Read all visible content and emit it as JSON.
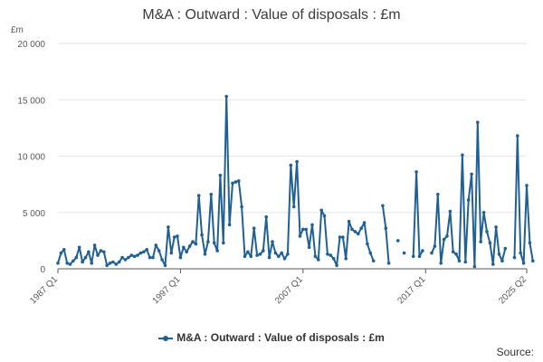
{
  "title": "M&A : Outward : Value of disposals : £m",
  "source_label": "Source:",
  "colors": {
    "series": "#206095",
    "grid": "#e6e6e6",
    "axis": "#595959"
  },
  "chart_data": {
    "type": "line",
    "title": "M&A : Outward : Value of disposals : £m",
    "y_unit": "£m",
    "ylim": [
      0,
      20000
    ],
    "y_ticks": [
      0,
      5000,
      10000,
      15000,
      20000
    ],
    "y_tick_labels": [
      "0",
      "5 000",
      "10 000",
      "15 000",
      "20 000"
    ],
    "x_tick_labels": [
      "1987 Q1",
      "1997 Q1",
      "2007 Q1",
      "2017 Q1",
      "2025 Q2"
    ],
    "x_range": [
      "1987 Q1",
      "2025 Q2"
    ],
    "grid": "horizontal",
    "legend_position": "bottom-center",
    "series": [
      {
        "name": "M&A : Outward : Value of disposals : £m",
        "start": "1987 Q1",
        "values": [
          500,
          1400,
          1700,
          500,
          400,
          700,
          1000,
          1900,
          600,
          1000,
          1500,
          500,
          2100,
          1200,
          1600,
          1500,
          300,
          500,
          600,
          400,
          600,
          1000,
          800,
          1000,
          1200,
          1100,
          1200,
          1400,
          1500,
          1700,
          1000,
          1000,
          2100,
          1600,
          800,
          300,
          3700,
          1400,
          2800,
          2900,
          1000,
          1900,
          1500,
          2000,
          2400,
          2200,
          6500,
          3000,
          1300,
          2400,
          6600,
          2300,
          1600,
          8300,
          2300,
          15300,
          3900,
          7600,
          7700,
          7800,
          5500,
          1100,
          1500,
          1100,
          3600,
          1200,
          1300,
          1600,
          4600,
          1000,
          2400,
          1400,
          1100,
          1400,
          900,
          1300,
          9200,
          5500,
          9500,
          2900,
          3500,
          3500,
          1900,
          3900,
          1100,
          800,
          5200,
          4700,
          1300,
          1200,
          900,
          300,
          2800,
          2800,
          900,
          4200,
          3500,
          3300,
          3100,
          3600,
          4100,
          2200,
          1400,
          700,
          null,
          null,
          5600,
          3600,
          500,
          null,
          null,
          2500,
          null,
          1400,
          null,
          null,
          1100,
          8600,
          1100,
          1600,
          null,
          null,
          1400,
          2000,
          6600,
          500,
          2600,
          2900,
          5100,
          1500,
          1300,
          700,
          10100,
          600,
          6100,
          8400,
          200,
          13000,
          2400,
          5000,
          3300,
          2300,
          400,
          3700,
          1300,
          700,
          1800,
          null,
          null,
          1000,
          11800,
          1400,
          500,
          7400,
          2300,
          700
        ]
      }
    ]
  }
}
